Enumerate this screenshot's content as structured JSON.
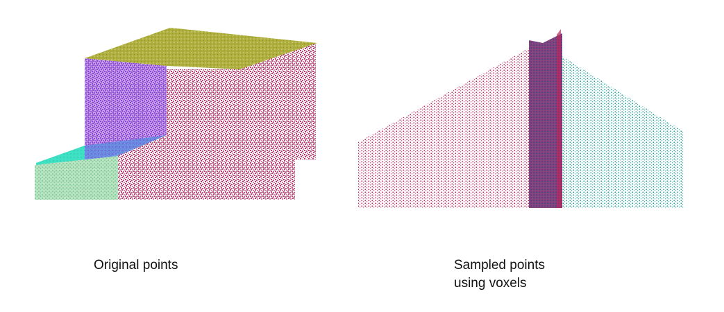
{
  "left_panel": {
    "caption": "Original points",
    "colors": {
      "top_face": "#a9a833",
      "purple_face": "#9b4fd6",
      "magenta_wall": "#b5285f",
      "cyan_top": "#36dcc0",
      "green_block": "#93d3a4"
    }
  },
  "right_panel": {
    "caption_line1": "Sampled points",
    "caption_line2": "using voxels",
    "colors": {
      "magenta_wall": "#b5285f",
      "teal_wall": "#2a9d99",
      "dark_strip": "#3a4a8a"
    }
  }
}
